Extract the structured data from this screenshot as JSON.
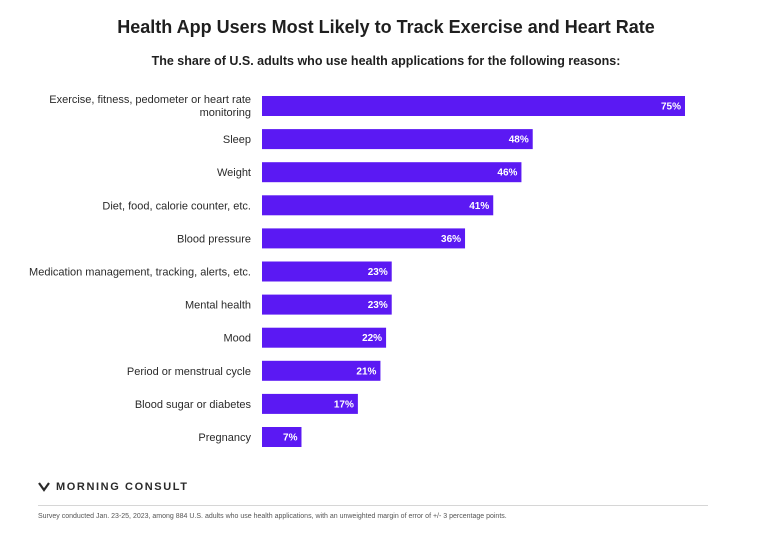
{
  "chart_data": {
    "type": "bar",
    "orientation": "horizontal",
    "title": "Health App Users Most Likely to Track Exercise and Heart Rate",
    "subtitle": "The share of U.S. adults who use health applications for the following reasons:",
    "categories": [
      "Exercise, fitness, pedometer or heart rate monitoring",
      "Sleep",
      "Weight",
      "Diet, food, calorie counter, etc.",
      "Blood pressure",
      "Medication management, tracking, alerts, etc.",
      "Mental health",
      "Mood",
      "Period or menstrual cycle",
      "Blood sugar or diabetes",
      "Pregnancy"
    ],
    "values": [
      75,
      48,
      46,
      41,
      36,
      23,
      23,
      22,
      21,
      17,
      7
    ],
    "value_labels": [
      "75%",
      "48%",
      "46%",
      "41%",
      "36%",
      "23%",
      "23%",
      "22%",
      "21%",
      "17%",
      "7%"
    ],
    "xlim": [
      0,
      75
    ],
    "grid": false,
    "bar_color": "#5b19f3"
  },
  "brand": {
    "name": "MORNING CONSULT",
    "icon": "morning-consult-logo-icon"
  },
  "footnote": "Survey conducted Jan. 23-25, 2023, among 884 U.S. adults who use health applications, with an unweighted margin of error of +/- 3 percentage points."
}
